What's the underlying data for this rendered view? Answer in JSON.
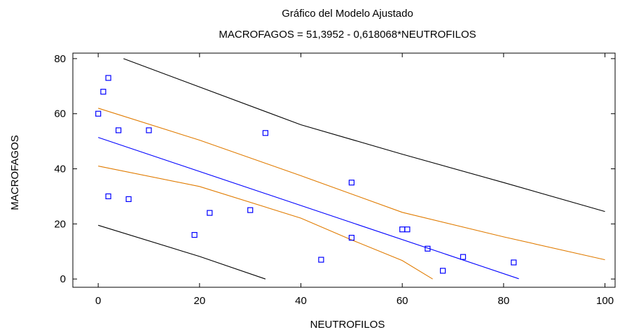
{
  "chart_data": {
    "type": "scatter",
    "title": "Gráfico del Modelo Ajustado",
    "subtitle": "MACROFAGOS = 51,3952 - 0,618068*NEUTROFILOS",
    "xlabel": "NEUTROFILOS",
    "ylabel": "MACROFAGOS",
    "xlim": [
      -5,
      102
    ],
    "ylim": [
      -3,
      82
    ],
    "x_ticks": [
      0,
      20,
      40,
      60,
      80,
      100
    ],
    "y_ticks": [
      0,
      20,
      40,
      60,
      80
    ],
    "grid": false,
    "points": [
      {
        "x": 0,
        "y": 60
      },
      {
        "x": 1,
        "y": 68
      },
      {
        "x": 2,
        "y": 73
      },
      {
        "x": 2,
        "y": 30
      },
      {
        "x": 4,
        "y": 54
      },
      {
        "x": 6,
        "y": 29
      },
      {
        "x": 10,
        "y": 54
      },
      {
        "x": 19,
        "y": 16
      },
      {
        "x": 22,
        "y": 24
      },
      {
        "x": 30,
        "y": 25
      },
      {
        "x": 33,
        "y": 53
      },
      {
        "x": 44,
        "y": 7
      },
      {
        "x": 50,
        "y": 35
      },
      {
        "x": 50,
        "y": 15
      },
      {
        "x": 60,
        "y": 18
      },
      {
        "x": 61,
        "y": 18
      },
      {
        "x": 65,
        "y": 11
      },
      {
        "x": 68,
        "y": 3
      },
      {
        "x": 72,
        "y": 8
      },
      {
        "x": 82,
        "y": 6
      }
    ],
    "fit_line": {
      "intercept": 51.3952,
      "slope": -0.618068,
      "x_range": [
        0,
        83
      ],
      "color": "#0000ff"
    },
    "confidence_band": {
      "color": "#e07b00",
      "upper": [
        [
          0,
          62
        ],
        [
          20,
          50.4
        ],
        [
          40,
          37.5
        ],
        [
          60,
          24.2
        ],
        [
          80,
          15.3
        ],
        [
          100,
          7
        ]
      ],
      "lower": [
        [
          0,
          41
        ],
        [
          20,
          33.6
        ],
        [
          40,
          22.1
        ],
        [
          50,
          14.2
        ],
        [
          60,
          6.7
        ],
        [
          66,
          0
        ]
      ]
    },
    "prediction_band": {
      "color": "#000000",
      "upper": [
        [
          5,
          80
        ],
        [
          40,
          56
        ],
        [
          60,
          45.3
        ],
        [
          80,
          35
        ],
        [
          100,
          24.5
        ]
      ],
      "lower": [
        [
          0,
          19.5
        ],
        [
          20,
          8.2
        ],
        [
          33,
          0
        ]
      ]
    },
    "marker": {
      "shape": "square",
      "color": "#0000ff"
    }
  }
}
